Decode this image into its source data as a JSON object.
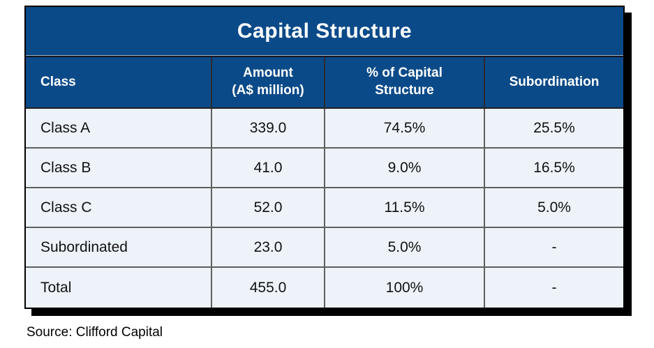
{
  "chart_data": {
    "type": "table",
    "title": "Capital Structure",
    "columns": [
      "Class",
      "Amount\n(A$ million)",
      "% of Capital\nStructure",
      "Subordination"
    ],
    "rows": [
      [
        "Class A",
        "339.0",
        "74.5%",
        "25.5%"
      ],
      [
        "Class B",
        "41.0",
        "9.0%",
        "16.5%"
      ],
      [
        "Class C",
        "52.0",
        "11.5%",
        "5.0%"
      ],
      [
        "Subordinated",
        "23.0",
        "5.0%",
        "-"
      ],
      [
        "Total",
        "455.0",
        "100%",
        "-"
      ]
    ],
    "amount_total": 455.0,
    "amounts_millions": [
      339.0,
      41.0,
      52.0,
      23.0
    ],
    "pct_of_capital": [
      74.5,
      9.0,
      11.5,
      5.0
    ],
    "subordination_pct": [
      25.5,
      16.5,
      5.0,
      null
    ]
  },
  "footer": {
    "source": "Source: Clifford Capital"
  },
  "colors": {
    "header_bg": "#0b4a88",
    "header_text": "#ffffff",
    "row_bg": "#edf3f8",
    "body_text": "#111111",
    "grid_line": "#5f5f5f",
    "header_grid_line": "#2b2b2b",
    "outer_border": "#000000",
    "drop_shadow": "#000000",
    "page_bg": "#ffffff"
  }
}
